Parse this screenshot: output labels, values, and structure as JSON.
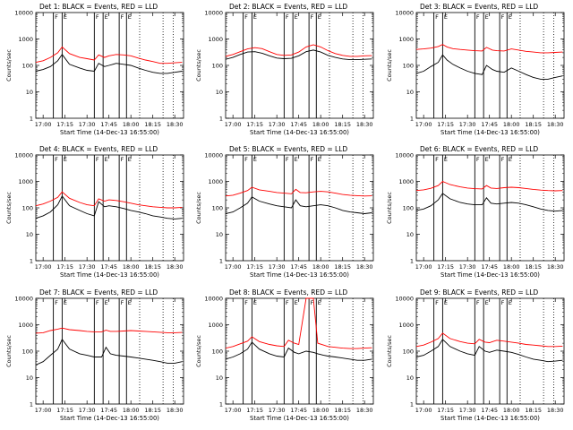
{
  "chart_data": {
    "type": "line",
    "layout": "3x3 grid",
    "y_scale": "log",
    "ylim": [
      1,
      10000
    ],
    "y_ticks": [
      "1",
      "10",
      "100",
      "1000",
      "10000"
    ],
    "ylabel": "Counts/sec",
    "x_ticks": [
      "17:00",
      "17:15",
      "17:30",
      "17:45",
      "18:00",
      "18:15",
      "18:30"
    ],
    "x_tick_minutes": [
      0,
      15,
      30,
      45,
      60,
      75,
      90
    ],
    "xlim_minutes": [
      -5,
      96
    ],
    "xlabel": "Start Time (14-Dec-13 16:55:00)",
    "colors": {
      "events": "#000000",
      "lld": "#ff0000",
      "axes": "#000000"
    },
    "solid_vlines_minutes": [
      7,
      13,
      35,
      41,
      52,
      57
    ],
    "dotted_vlines_minutes": [
      66,
      82,
      89
    ],
    "flag_letters": [
      "F",
      "E",
      "F",
      "E",
      "F",
      "E"
    ],
    "panels": [
      {
        "title": "Det 1: BLACK = Events, RED = LLD",
        "t": [
          -5,
          0,
          5,
          10,
          13,
          18,
          25,
          30,
          35,
          38,
          42,
          45,
          50,
          55,
          60,
          65,
          70,
          75,
          80,
          85,
          90,
          95
        ],
        "events": [
          60,
          70,
          90,
          150,
          260,
          110,
          80,
          65,
          60,
          120,
          90,
          100,
          120,
          110,
          100,
          80,
          65,
          55,
          50,
          50,
          55,
          60
        ],
        "lld": [
          130,
          150,
          200,
          300,
          500,
          280,
          200,
          180,
          160,
          250,
          200,
          230,
          260,
          250,
          230,
          190,
          160,
          140,
          120,
          120,
          125,
          130
        ]
      },
      {
        "title": "Det 2: BLACK = Events, RED = LLD",
        "t": [
          -5,
          0,
          5,
          10,
          15,
          20,
          25,
          30,
          35,
          40,
          45,
          50,
          55,
          60,
          65,
          70,
          75,
          80,
          85,
          90,
          95
        ],
        "events": [
          170,
          200,
          260,
          320,
          330,
          290,
          230,
          190,
          180,
          185,
          230,
          330,
          380,
          320,
          240,
          200,
          175,
          165,
          165,
          170,
          175
        ],
        "lld": [
          220,
          260,
          330,
          420,
          470,
          430,
          330,
          260,
          240,
          250,
          320,
          500,
          600,
          500,
          360,
          280,
          240,
          220,
          220,
          230,
          235
        ]
      },
      {
        "title": "Det 3: BLACK = Events, RED = LLD",
        "t": [
          -5,
          0,
          5,
          10,
          13,
          16,
          20,
          25,
          30,
          35,
          40,
          43,
          47,
          50,
          55,
          60,
          65,
          70,
          75,
          80,
          85,
          90,
          95
        ],
        "events": [
          50,
          60,
          90,
          130,
          250,
          160,
          110,
          80,
          60,
          50,
          45,
          100,
          70,
          60,
          55,
          80,
          60,
          45,
          35,
          30,
          30,
          35,
          40
        ],
        "lld": [
          400,
          420,
          450,
          520,
          620,
          500,
          430,
          400,
          380,
          360,
          350,
          480,
          380,
          360,
          350,
          420,
          380,
          340,
          320,
          300,
          300,
          310,
          320
        ]
      },
      {
        "title": "Det 4: BLACK = Events, RED = LLD",
        "t": [
          -5,
          0,
          5,
          10,
          13,
          18,
          25,
          30,
          35,
          38,
          42,
          45,
          50,
          55,
          60,
          65,
          70,
          75,
          80,
          85,
          90,
          95
        ],
        "events": [
          40,
          50,
          70,
          130,
          280,
          120,
          80,
          60,
          50,
          170,
          110,
          120,
          110,
          95,
          80,
          70,
          60,
          50,
          45,
          40,
          38,
          40
        ],
        "lld": [
          120,
          140,
          180,
          250,
          400,
          230,
          160,
          130,
          120,
          220,
          180,
          200,
          190,
          170,
          150,
          130,
          120,
          110,
          105,
          100,
          100,
          105
        ]
      },
      {
        "title": "Det 5: BLACK = Events, RED = LLD",
        "t": [
          -5,
          0,
          5,
          10,
          13,
          18,
          25,
          30,
          35,
          40,
          43,
          46,
          50,
          55,
          60,
          65,
          70,
          75,
          80,
          85,
          90,
          95
        ],
        "events": [
          60,
          70,
          100,
          150,
          260,
          180,
          140,
          120,
          110,
          100,
          200,
          120,
          110,
          120,
          130,
          120,
          100,
          80,
          70,
          65,
          60,
          65
        ],
        "lld": [
          280,
          300,
          360,
          450,
          600,
          480,
          420,
          380,
          360,
          340,
          500,
          380,
          370,
          400,
          420,
          400,
          360,
          320,
          300,
          290,
          280,
          285
        ]
      },
      {
        "title": "Det 6: BLACK = Events, RED = LLD",
        "t": [
          -5,
          0,
          5,
          10,
          13,
          18,
          25,
          30,
          35,
          40,
          43,
          46,
          50,
          55,
          60,
          65,
          70,
          75,
          80,
          85,
          90,
          95
        ],
        "events": [
          80,
          90,
          120,
          200,
          350,
          220,
          160,
          140,
          130,
          130,
          240,
          150,
          140,
          150,
          160,
          150,
          130,
          110,
          90,
          80,
          75,
          80
        ],
        "lld": [
          450,
          480,
          550,
          700,
          1000,
          760,
          620,
          560,
          530,
          520,
          700,
          560,
          540,
          580,
          600,
          580,
          540,
          500,
          470,
          450,
          440,
          450
        ]
      },
      {
        "title": "Det 7: BLACK = Events, RED = LLD",
        "t": [
          -5,
          0,
          5,
          10,
          13,
          18,
          25,
          30,
          35,
          40,
          43,
          46,
          50,
          55,
          60,
          65,
          70,
          75,
          80,
          85,
          90,
          95
        ],
        "events": [
          30,
          40,
          70,
          120,
          280,
          120,
          80,
          70,
          60,
          60,
          140,
          80,
          70,
          65,
          60,
          55,
          50,
          45,
          40,
          35,
          35,
          40
        ],
        "lld": [
          480,
          500,
          600,
          680,
          750,
          650,
          600,
          560,
          540,
          540,
          620,
          560,
          560,
          580,
          600,
          580,
          560,
          540,
          520,
          500,
          500,
          510
        ]
      },
      {
        "title": "Det 8: BLACK = Events, RED = LLD",
        "t": [
          -5,
          0,
          5,
          10,
          13,
          18,
          25,
          30,
          35,
          38,
          42,
          45,
          50,
          55,
          58,
          62,
          65,
          70,
          75,
          80,
          85,
          90,
          95
        ],
        "events": [
          50,
          60,
          80,
          120,
          220,
          120,
          80,
          65,
          60,
          130,
          90,
          80,
          100,
          90,
          80,
          70,
          65,
          60,
          55,
          50,
          45,
          45,
          50
        ],
        "lld": [
          130,
          150,
          190,
          240,
          350,
          230,
          180,
          160,
          150,
          260,
          200,
          180,
          10000,
          10000,
          200,
          170,
          150,
          140,
          130,
          125,
          125,
          130,
          135
        ]
      },
      {
        "title": "Det 9: BLACK = Events, RED = LLD",
        "t": [
          -5,
          0,
          5,
          10,
          13,
          18,
          25,
          30,
          35,
          38,
          42,
          45,
          50,
          55,
          60,
          65,
          70,
          75,
          80,
          85,
          90,
          95
        ],
        "events": [
          60,
          70,
          100,
          150,
          280,
          150,
          100,
          80,
          70,
          150,
          100,
          90,
          110,
          100,
          90,
          75,
          60,
          50,
          45,
          40,
          42,
          45
        ],
        "lld": [
          150,
          170,
          220,
          300,
          480,
          300,
          230,
          200,
          190,
          280,
          220,
          210,
          260,
          240,
          220,
          200,
          180,
          170,
          160,
          150,
          150,
          155
        ]
      }
    ]
  }
}
